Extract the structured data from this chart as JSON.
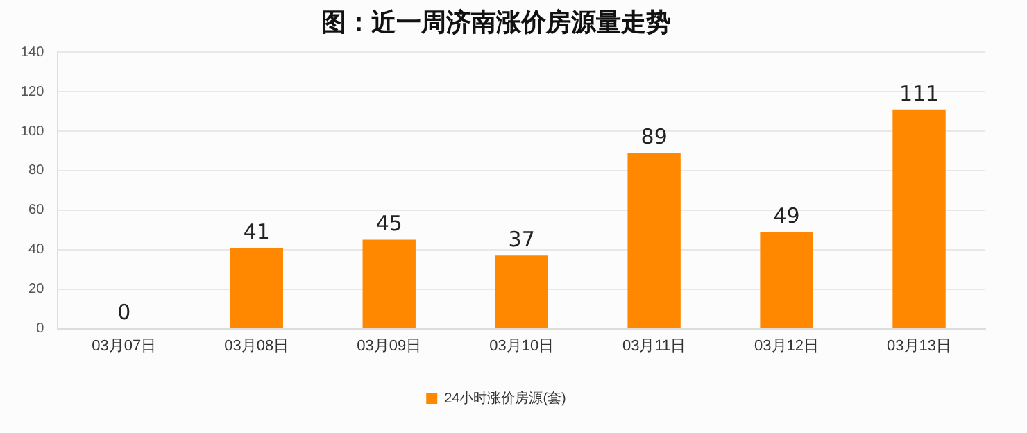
{
  "chart_data": {
    "type": "bar",
    "title": "图：近一周济南涨价房源量走势",
    "categories": [
      "03月07日",
      "03月08日",
      "03月09日",
      "03月10日",
      "03月11日",
      "03月12日",
      "03月13日"
    ],
    "series": [
      {
        "name": "24小时涨价房源(套)",
        "color": "#ff8800",
        "values": [
          0,
          41,
          45,
          37,
          89,
          49,
          111
        ]
      }
    ],
    "ylim": [
      0,
      140
    ],
    "yticks": [
      0,
      20,
      40,
      60,
      80,
      100,
      120,
      140
    ],
    "grid": "y",
    "legend": "bottom",
    "data_labels": true
  }
}
